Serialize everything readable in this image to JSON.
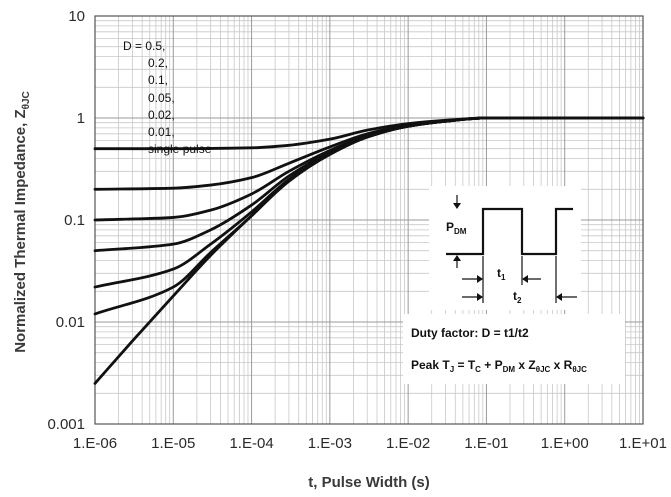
{
  "chart_data": {
    "type": "line",
    "title": "",
    "xlabel": "t, Pulse Width (s)",
    "ylabel_main": "Normalized Thermal Impedance, Z",
    "ylabel_sub": "θJC",
    "x_scale": "log",
    "y_scale": "log",
    "xlim": [
      1e-06,
      10
    ],
    "ylim": [
      0.001,
      10
    ],
    "grid": true,
    "x_tick_labels": [
      "1.E-06",
      "1.E-05",
      "1.E-04",
      "1.E-03",
      "1.E-02",
      "1.E-01",
      "1.E+00",
      "1.E+01"
    ],
    "y_tick_labels": [
      "0.001",
      "0.01",
      "0.1",
      "1",
      "10"
    ],
    "legend": [
      "D = 0.5,",
      "0.2,",
      "0.1,",
      "0.05,",
      "0.02,",
      "0.01,",
      "single pulse"
    ],
    "series": [
      {
        "name": "0.5",
        "x": [
          1e-06,
          1e-05,
          0.0001,
          0.0003,
          0.001,
          0.003,
          0.01,
          0.03,
          0.1,
          1,
          10
        ],
        "y": [
          0.5,
          0.5,
          0.51,
          0.54,
          0.62,
          0.76,
          0.88,
          0.95,
          1.0,
          1.0,
          1.0
        ]
      },
      {
        "name": "0.2",
        "x": [
          1e-06,
          1e-05,
          3e-05,
          0.0001,
          0.0003,
          0.001,
          0.003,
          0.01,
          0.03,
          0.1,
          1,
          10
        ],
        "y": [
          0.2,
          0.205,
          0.22,
          0.26,
          0.36,
          0.52,
          0.7,
          0.85,
          0.94,
          1.0,
          1.0,
          1.0
        ]
      },
      {
        "name": "0.1",
        "x": [
          1e-06,
          1e-05,
          3e-05,
          0.0001,
          0.0003,
          0.001,
          0.003,
          0.01,
          0.03,
          0.1,
          1,
          10
        ],
        "y": [
          0.1,
          0.106,
          0.125,
          0.18,
          0.3,
          0.48,
          0.67,
          0.84,
          0.93,
          1.0,
          1.0,
          1.0
        ]
      },
      {
        "name": "0.05",
        "x": [
          1e-06,
          1e-05,
          3e-05,
          0.0001,
          0.0003,
          0.001,
          0.003,
          0.01,
          0.03,
          0.1,
          1,
          10
        ],
        "y": [
          0.05,
          0.058,
          0.08,
          0.14,
          0.27,
          0.46,
          0.66,
          0.83,
          0.93,
          1.0,
          1.0,
          1.0
        ]
      },
      {
        "name": "0.02",
        "x": [
          1e-06,
          1e-05,
          3e-05,
          0.0001,
          0.0003,
          0.001,
          0.003,
          0.01,
          0.03,
          0.1,
          1,
          10
        ],
        "y": [
          0.022,
          0.033,
          0.058,
          0.12,
          0.25,
          0.45,
          0.65,
          0.83,
          0.93,
          1.0,
          1.0,
          1.0
        ]
      },
      {
        "name": "0.01",
        "x": [
          1e-06,
          1e-05,
          3e-05,
          0.0001,
          0.0003,
          0.001,
          0.003,
          0.01,
          0.03,
          0.1,
          1,
          10
        ],
        "y": [
          0.012,
          0.022,
          0.048,
          0.11,
          0.245,
          0.44,
          0.65,
          0.83,
          0.93,
          1.0,
          1.0,
          1.0
        ]
      },
      {
        "name": "single pulse",
        "x": [
          1e-06,
          3e-06,
          1e-05,
          3e-05,
          0.0001,
          0.0003,
          0.001,
          0.003,
          0.01,
          0.03,
          0.1,
          1,
          10
        ],
        "y": [
          0.0025,
          0.0065,
          0.018,
          0.045,
          0.11,
          0.24,
          0.44,
          0.65,
          0.83,
          0.93,
          1.0,
          1.0,
          1.0
        ]
      }
    ]
  },
  "inset": {
    "pdm_main": "P",
    "pdm_sub": "DM",
    "t1_main": "t",
    "t1_sub": "1",
    "t2_main": "t",
    "t2_sub": "2",
    "duty_factor": "Duty factor: D = t1/t2",
    "peak_1": "Peak T",
    "peak_1_sub": "J",
    "peak_2": " = T",
    "peak_2_sub": "C",
    "peak_3": " + P",
    "peak_3_sub": "DM",
    "peak_4": " x Z",
    "peak_4_sub": "θJC",
    "peak_5": " x R",
    "peak_5_sub": "θJC"
  }
}
